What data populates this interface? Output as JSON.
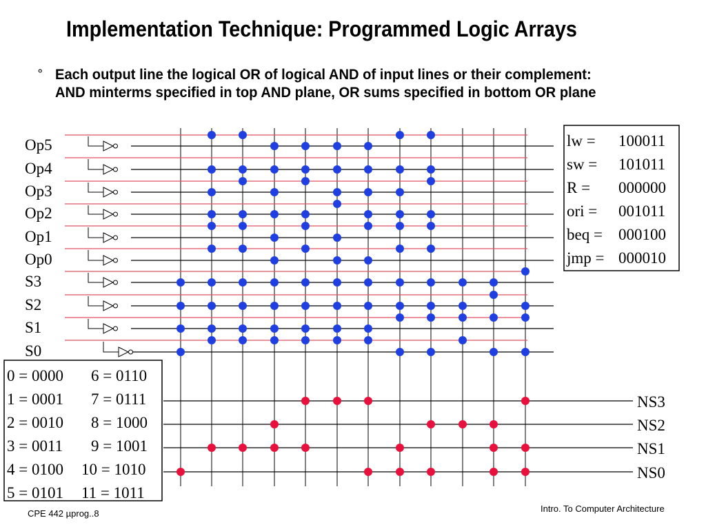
{
  "title": "Implementation Technique: Programmed Logic Arrays",
  "bullet": {
    "marker": "°",
    "text": "Each output line the logical OR of logical AND of input lines or their complement: AND minterms specified in top AND plane, OR sums specified in bottom OR plane"
  },
  "inputs": [
    "Op5",
    "Op4",
    "Op3",
    "Op2",
    "Op1",
    "Op0",
    "S3",
    "S2",
    "S1",
    "S0"
  ],
  "outputs": [
    "NS3",
    "NS2",
    "NS1",
    "NS0"
  ],
  "opcodes": [
    {
      "name": "lw =",
      "code": "100011"
    },
    {
      "name": "sw =",
      "code": "101011"
    },
    {
      "name": "R =",
      "code": "000000"
    },
    {
      "name": "ori =",
      "code": "001011"
    },
    {
      "name": "beq =",
      "code": "000100"
    },
    {
      "name": "jmp =",
      "code": "000010"
    }
  ],
  "state_codes": [
    [
      "0 = 0000",
      "6 = 0110"
    ],
    [
      "1 = 0001",
      "7 = 0111"
    ],
    [
      "2 = 0010",
      "8 = 1000"
    ],
    [
      "3 = 0011",
      "9 = 1001"
    ],
    [
      "4 = 0100",
      "10 = 1010"
    ],
    [
      "5 = 0101",
      "11 = 1011"
    ]
  ],
  "and_plane": {
    "column_count": 12,
    "dots": [
      {
        "col": 1,
        "line": "Op5-complement"
      },
      {
        "col": 2,
        "line": "Op5-complement"
      },
      {
        "col": 7,
        "line": "Op5-complement"
      },
      {
        "col": 8,
        "line": "Op5-complement"
      },
      {
        "col": 3,
        "line": "Op5"
      },
      {
        "col": 4,
        "line": "Op5"
      },
      {
        "col": 5,
        "line": "Op5"
      },
      {
        "col": 6,
        "line": "Op5"
      },
      {
        "col": 1,
        "line": "Op4"
      },
      {
        "col": 2,
        "line": "Op4"
      },
      {
        "col": 3,
        "line": "Op4"
      },
      {
        "col": 4,
        "line": "Op4"
      },
      {
        "col": 5,
        "line": "Op4"
      },
      {
        "col": 6,
        "line": "Op4"
      },
      {
        "col": 7,
        "line": "Op4"
      },
      {
        "col": 8,
        "line": "Op4"
      },
      {
        "col": 2,
        "line": "Op3-complement"
      },
      {
        "col": 4,
        "line": "Op3-complement"
      },
      {
        "col": 8,
        "line": "Op3-complement"
      },
      {
        "col": 1,
        "line": "Op3"
      },
      {
        "col": 3,
        "line": "Op3"
      },
      {
        "col": 5,
        "line": "Op3"
      },
      {
        "col": 6,
        "line": "Op3"
      },
      {
        "col": 7,
        "line": "Op3"
      },
      {
        "col": 5,
        "line": "Op2-complement"
      },
      {
        "col": 1,
        "line": "Op2"
      },
      {
        "col": 2,
        "line": "Op2"
      },
      {
        "col": 3,
        "line": "Op2"
      },
      {
        "col": 4,
        "line": "Op2"
      },
      {
        "col": 6,
        "line": "Op2"
      },
      {
        "col": 7,
        "line": "Op2"
      },
      {
        "col": 8,
        "line": "Op2"
      },
      {
        "col": 1,
        "line": "Op1-complement"
      },
      {
        "col": 2,
        "line": "Op1-complement"
      },
      {
        "col": 4,
        "line": "Op1-complement"
      },
      {
        "col": 6,
        "line": "Op1-complement"
      },
      {
        "col": 7,
        "line": "Op1-complement"
      },
      {
        "col": 8,
        "line": "Op1-complement"
      },
      {
        "col": 3,
        "line": "Op1"
      },
      {
        "col": 5,
        "line": "Op1"
      },
      {
        "col": 1,
        "line": "Op0-complement"
      },
      {
        "col": 2,
        "line": "Op0-complement"
      },
      {
        "col": 4,
        "line": "Op0-complement"
      },
      {
        "col": 7,
        "line": "Op0-complement"
      },
      {
        "col": 8,
        "line": "Op0-complement"
      },
      {
        "col": 3,
        "line": "Op0"
      },
      {
        "col": 5,
        "line": "Op0"
      },
      {
        "col": 6,
        "line": "Op0"
      },
      {
        "col": 11,
        "line": "S3-complement"
      },
      {
        "col": 0,
        "line": "S3"
      },
      {
        "col": 1,
        "line": "S3"
      },
      {
        "col": 2,
        "line": "S3"
      },
      {
        "col": 3,
        "line": "S3"
      },
      {
        "col": 4,
        "line": "S3"
      },
      {
        "col": 5,
        "line": "S3"
      },
      {
        "col": 6,
        "line": "S3"
      },
      {
        "col": 7,
        "line": "S3"
      },
      {
        "col": 8,
        "line": "S3"
      },
      {
        "col": 9,
        "line": "S3"
      },
      {
        "col": 10,
        "line": "S3"
      },
      {
        "col": 10,
        "line": "S2-complement"
      },
      {
        "col": 0,
        "line": "S2"
      },
      {
        "col": 1,
        "line": "S2"
      },
      {
        "col": 2,
        "line": "S2"
      },
      {
        "col": 3,
        "line": "S2"
      },
      {
        "col": 4,
        "line": "S2"
      },
      {
        "col": 5,
        "line": "S2"
      },
      {
        "col": 6,
        "line": "S2"
      },
      {
        "col": 7,
        "line": "S2"
      },
      {
        "col": 8,
        "line": "S2"
      },
      {
        "col": 9,
        "line": "S2"
      },
      {
        "col": 11,
        "line": "S2"
      },
      {
        "col": 7,
        "line": "S1-complement"
      },
      {
        "col": 8,
        "line": "S1-complement"
      },
      {
        "col": 9,
        "line": "S1-complement"
      },
      {
        "col": 10,
        "line": "S1-complement"
      },
      {
        "col": 11,
        "line": "S1-complement"
      },
      {
        "col": 0,
        "line": "S1"
      },
      {
        "col": 1,
        "line": "S1"
      },
      {
        "col": 2,
        "line": "S1"
      },
      {
        "col": 3,
        "line": "S1"
      },
      {
        "col": 4,
        "line": "S1"
      },
      {
        "col": 5,
        "line": "S1"
      },
      {
        "col": 6,
        "line": "S1"
      },
      {
        "col": 1,
        "line": "S0-complement"
      },
      {
        "col": 2,
        "line": "S0-complement"
      },
      {
        "col": 3,
        "line": "S0-complement"
      },
      {
        "col": 4,
        "line": "S0-complement"
      },
      {
        "col": 5,
        "line": "S0-complement"
      },
      {
        "col": 6,
        "line": "S0-complement"
      },
      {
        "col": 9,
        "line": "S0-complement"
      },
      {
        "col": 0,
        "line": "S0"
      },
      {
        "col": 7,
        "line": "S0"
      },
      {
        "col": 8,
        "line": "S0"
      },
      {
        "col": 10,
        "line": "S0"
      },
      {
        "col": 11,
        "line": "S0"
      }
    ]
  },
  "or_plane": {
    "dots": [
      {
        "col": 4,
        "output": "NS3"
      },
      {
        "col": 5,
        "output": "NS3"
      },
      {
        "col": 6,
        "output": "NS3"
      },
      {
        "col": 11,
        "output": "NS3"
      },
      {
        "col": 3,
        "output": "NS2"
      },
      {
        "col": 8,
        "output": "NS2"
      },
      {
        "col": 9,
        "output": "NS2"
      },
      {
        "col": 10,
        "output": "NS2"
      },
      {
        "col": 1,
        "output": "NS1"
      },
      {
        "col": 2,
        "output": "NS1"
      },
      {
        "col": 3,
        "output": "NS1"
      },
      {
        "col": 4,
        "output": "NS1"
      },
      {
        "col": 7,
        "output": "NS1"
      },
      {
        "col": 10,
        "output": "NS1"
      },
      {
        "col": 11,
        "output": "NS1"
      },
      {
        "col": 0,
        "output": "NS0"
      },
      {
        "col": 6,
        "output": "NS0"
      },
      {
        "col": 7,
        "output": "NS0"
      },
      {
        "col": 8,
        "output": "NS0"
      },
      {
        "col": 10,
        "output": "NS0"
      },
      {
        "col": 11,
        "output": "NS0"
      }
    ]
  },
  "colors": {
    "and_dot": "#1f3fe0",
    "or_dot": "#e8103c",
    "complement_line": "#e05060",
    "wire": "#000000"
  },
  "footer": {
    "left": "CPE 442  µprog..8",
    "right": "Intro. To Computer Architecture"
  }
}
